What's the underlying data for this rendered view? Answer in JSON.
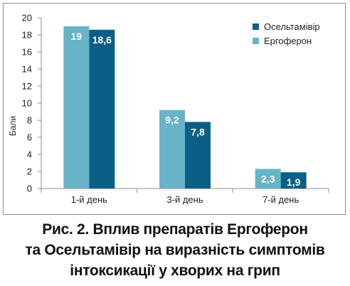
{
  "chart_data": {
    "type": "bar",
    "categories": [
      "1-й день",
      "3-й день",
      "7-й день"
    ],
    "series": [
      {
        "name": "Ергоферон",
        "values": [
          19,
          9.2,
          2.3
        ],
        "labels": [
          "19",
          "9,2",
          "2,3"
        ],
        "color": "#67b3c7"
      },
      {
        "name": "Осельтамівір",
        "values": [
          18.6,
          7.8,
          1.9
        ],
        "labels": [
          "18,6",
          "7,8",
          "1,9"
        ],
        "color": "#0b5f86"
      }
    ],
    "legend_order": [
      1,
      0
    ],
    "ylabel": "Бали",
    "ylim": [
      0,
      20
    ],
    "yticks": [
      0,
      2,
      4,
      6,
      8,
      10,
      12,
      14,
      16,
      18,
      20
    ],
    "grid": false,
    "legend_position": "top-right"
  },
  "caption": {
    "lines": [
      "Рис. 2. Вплив препаратів Ергоферон",
      "та Осельтамівір на виразність симптомів",
      "інтоксикації у хворих на грип"
    ]
  }
}
